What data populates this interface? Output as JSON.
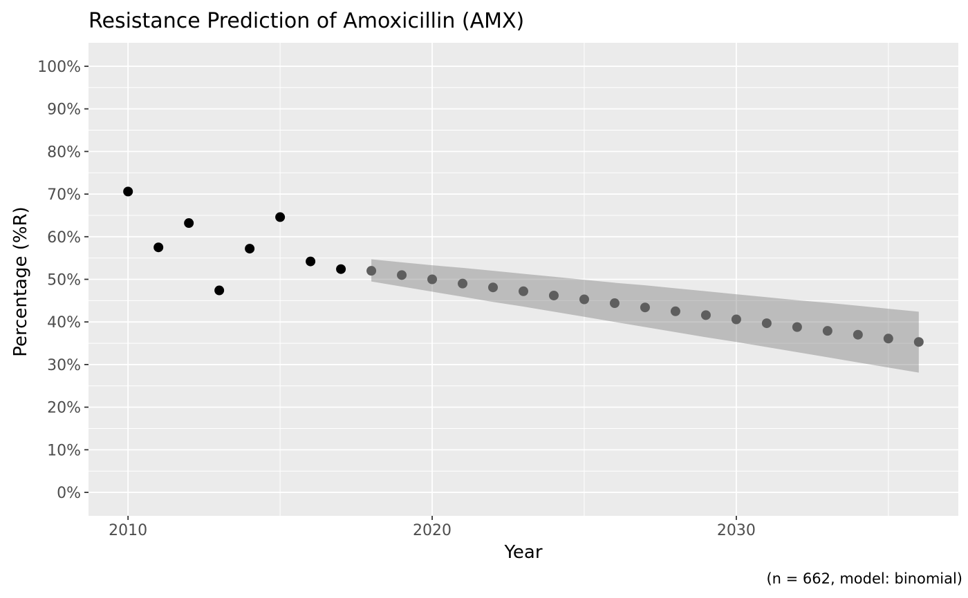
{
  "chart_data": {
    "type": "scatter",
    "title": "Resistance Prediction of Amoxicillin (AMX)",
    "xlabel": "Year",
    "ylabel": "Percentage (%R)",
    "caption": "(n = 662, model: binomial)",
    "xlim": [
      2008.7,
      2037.3
    ],
    "ylim": [
      -5.5,
      105.5
    ],
    "grid": true,
    "legend": "none",
    "panel_background": "#ebebeb",
    "gridline_color": "#ffffff",
    "tick_mark_color": "#333333",
    "tick_label_color": "#4d4d4d",
    "x_axis": {
      "major_ticks": [
        2010,
        2020,
        2030
      ],
      "major_tick_labels": [
        "2010",
        "2020",
        "2030"
      ],
      "minor_ticks": [
        2015,
        2025,
        2035
      ]
    },
    "y_axis": {
      "major_ticks": [
        0,
        10,
        20,
        30,
        40,
        50,
        60,
        70,
        80,
        90,
        100
      ],
      "major_tick_labels": [
        "0%",
        "10%",
        "20%",
        "30%",
        "40%",
        "50%",
        "60%",
        "70%",
        "80%",
        "90%",
        "100%"
      ],
      "minor_ticks": [
        5,
        15,
        25,
        35,
        45,
        55,
        65,
        75,
        85,
        95
      ]
    },
    "series": [
      {
        "name": "observed",
        "type": "points",
        "color": "#000000",
        "x": [
          2010,
          2011,
          2012,
          2013,
          2014,
          2015,
          2016,
          2017
        ],
        "y": [
          70.6,
          57.5,
          63.2,
          47.4,
          57.2,
          64.6,
          54.2,
          52.4
        ]
      },
      {
        "name": "predicted",
        "type": "points",
        "color": "#5e5e5e",
        "x": [
          2018,
          2019,
          2020,
          2021,
          2022,
          2023,
          2024,
          2025,
          2026,
          2027,
          2028,
          2029,
          2030,
          2031,
          2032,
          2033,
          2034,
          2035,
          2036
        ],
        "y": [
          52.0,
          51.0,
          50.0,
          49.0,
          48.1,
          47.2,
          46.2,
          45.3,
          44.4,
          43.4,
          42.5,
          41.6,
          40.6,
          39.7,
          38.8,
          37.9,
          37.0,
          36.1,
          35.3
        ]
      },
      {
        "name": "confidence-interval",
        "type": "ribbon",
        "color": "rgba(125,125,125,0.42)",
        "x": [
          2018,
          2019,
          2020,
          2021,
          2022,
          2023,
          2024,
          2025,
          2026,
          2027,
          2028,
          2029,
          2030,
          2031,
          2032,
          2033,
          2034,
          2035,
          2036
        ],
        "upper": [
          54.7,
          54.0,
          53.3,
          52.7,
          52.0,
          51.3,
          50.6,
          49.9,
          49.2,
          48.6,
          47.9,
          47.2,
          46.5,
          45.8,
          45.1,
          44.5,
          43.8,
          43.1,
          42.4
        ],
        "lower": [
          49.5,
          48.3,
          47.1,
          45.9,
          44.7,
          43.6,
          42.4,
          41.2,
          40.0,
          38.8,
          37.6,
          36.4,
          35.3,
          34.1,
          32.9,
          31.7,
          30.5,
          29.3,
          28.1
        ]
      }
    ]
  }
}
